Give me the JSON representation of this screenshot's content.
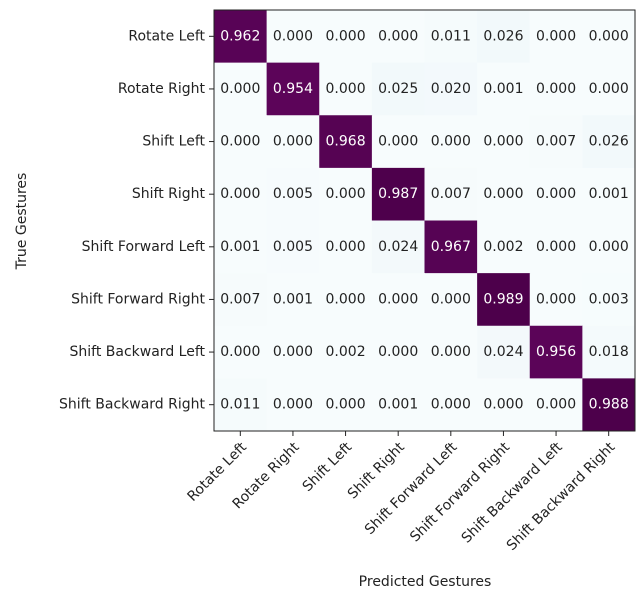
{
  "chart_data": {
    "type": "heatmap",
    "x_label": "Predicted Gestures",
    "y_label": "True Gestures",
    "x_categories": [
      "Rotate Left",
      "Rotate Right",
      "Shift Left",
      "Shift Right",
      "Shift Forward Left",
      "Shift Forward Right",
      "Shift Backward Left",
      "Shift Backward Right"
    ],
    "y_categories": [
      "Rotate Left",
      "Rotate Right",
      "Shift Left",
      "Shift Right",
      "Shift Forward Left",
      "Shift Forward Right",
      "Shift Backward Left",
      "Shift Backward Right"
    ],
    "values": [
      [
        0.962,
        0,
        0,
        0,
        0.011,
        0.026,
        0,
        0
      ],
      [
        0,
        0.954,
        0,
        0.025,
        0.02,
        0.001,
        0,
        0
      ],
      [
        0,
        0,
        0.968,
        0,
        0,
        0,
        0.007,
        0.026
      ],
      [
        0,
        0.005,
        0,
        0.987,
        0.007,
        0,
        0,
        0.001
      ],
      [
        0.001,
        0.005,
        0,
        0.024,
        0.967,
        0.002,
        0,
        0
      ],
      [
        0.007,
        0.001,
        0,
        0,
        0,
        0.989,
        0,
        0.003
      ],
      [
        0,
        0,
        0.002,
        0,
        0,
        0.024,
        0.956,
        0.018
      ],
      [
        0.011,
        0,
        0,
        0.001,
        0,
        0,
        0,
        0.988
      ]
    ],
    "value_labels": [
      [
        "0.962",
        "0.000",
        "0.000",
        "0.000",
        "0.011",
        "0.026",
        "0.000",
        "0.000"
      ],
      [
        "0.000",
        "0.954",
        "0.000",
        "0.025",
        "0.020",
        "0.001",
        "0.000",
        "0.000"
      ],
      [
        "0.000",
        "0.000",
        "0.968",
        "0.000",
        "0.000",
        "0.000",
        "0.007",
        "0.026"
      ],
      [
        "0.000",
        "0.005",
        "0.000",
        "0.987",
        "0.007",
        "0.000",
        "0.000",
        "0.001"
      ],
      [
        "0.001",
        "0.005",
        "0.000",
        "0.024",
        "0.967",
        "0.002",
        "0.000",
        "0.000"
      ],
      [
        "0.007",
        "0.001",
        "0.000",
        "0.000",
        "0.000",
        "0.989",
        "0.000",
        "0.003"
      ],
      [
        "0.000",
        "0.000",
        "0.002",
        "0.000",
        "0.000",
        "0.024",
        "0.956",
        "0.018"
      ],
      [
        "0.011",
        "0.000",
        "0.000",
        "0.001",
        "0.000",
        "0.000",
        "0.000",
        "0.988"
      ]
    ],
    "colormap": [
      "#f7fcfd",
      "#e0ecf4",
      "#bfd3e6",
      "#9ebcda",
      "#8c96c6",
      "#8c6bb1",
      "#88419d",
      "#810f7c",
      "#4d004b"
    ]
  }
}
